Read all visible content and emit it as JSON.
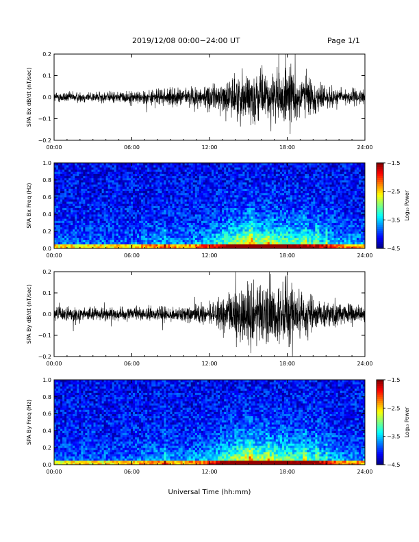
{
  "header": {
    "title": "2019/12/08  00:00−24:00 UT",
    "page": "Page 1/1"
  },
  "xlabel": "Universal Time (hh:mm)",
  "x_ticks": [
    "00:00",
    "06:00",
    "12:00",
    "18:00",
    "24:00"
  ],
  "chart_data": [
    {
      "type": "line",
      "ylabel": "SPA Bx dB/dt (nT/sec)",
      "xlim": [
        0,
        24
      ],
      "ylim": [
        -0.2,
        0.2
      ],
      "y_ticks": [
        "0.2",
        "0.1",
        "0.0",
        "−0.1",
        "−0.2"
      ],
      "envelope": {
        "hours": [
          0,
          2,
          4,
          6,
          8,
          10,
          12,
          13,
          14,
          15,
          16,
          17,
          18,
          19,
          20,
          21,
          22,
          24
        ],
        "amplitude": [
          0.03,
          0.03,
          0.03,
          0.035,
          0.045,
          0.05,
          0.07,
          0.08,
          0.12,
          0.15,
          0.12,
          0.14,
          0.17,
          0.13,
          0.1,
          0.06,
          0.05,
          0.04
        ]
      }
    },
    {
      "type": "heatmap",
      "ylabel": "SPA Bx Freq (Hz)",
      "xlim": [
        0,
        24
      ],
      "ylim": [
        0,
        1.0
      ],
      "y_ticks": [
        "1.0",
        "0.8",
        "0.6",
        "0.4",
        "0.2",
        "0.0"
      ],
      "colorbar": {
        "label": "Log₁₀ Power",
        "ticks": [
          "−1.5",
          "−2.5",
          "−3.5",
          "−4.5"
        ],
        "range": [
          -4.5,
          -1.5
        ]
      }
    },
    {
      "type": "line",
      "ylabel": "SPA By dB/dt (nT/sec)",
      "xlim": [
        0,
        24
      ],
      "ylim": [
        -0.2,
        0.2
      ],
      "y_ticks": [
        "0.2",
        "0.1",
        "0.0",
        "−0.1",
        "−0.2"
      ],
      "envelope": {
        "hours": [
          0,
          2,
          4,
          6,
          8,
          10,
          12,
          13,
          14,
          15,
          16,
          17,
          18,
          19,
          20,
          21,
          22,
          24
        ],
        "amplitude": [
          0.04,
          0.04,
          0.035,
          0.035,
          0.04,
          0.04,
          0.06,
          0.09,
          0.14,
          0.2,
          0.18,
          0.18,
          0.2,
          0.15,
          0.11,
          0.08,
          0.06,
          0.05
        ]
      }
    },
    {
      "type": "heatmap",
      "ylabel": "SPA By Freq (Hz)",
      "xlim": [
        0,
        24
      ],
      "ylim": [
        0,
        1.0
      ],
      "y_ticks": [
        "1.0",
        "0.8",
        "0.6",
        "0.4",
        "0.2",
        "0.0"
      ],
      "colorbar": {
        "label": "Log₁₀ Power",
        "ticks": [
          "−1.5",
          "−2.5",
          "−3.5",
          "−4.5"
        ],
        "range": [
          -4.5,
          -1.5
        ]
      }
    }
  ]
}
